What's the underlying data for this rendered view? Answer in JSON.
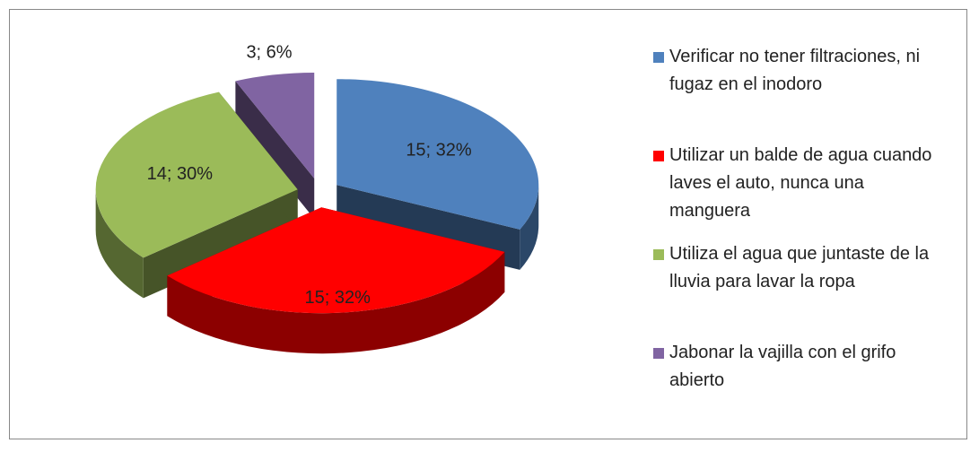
{
  "chart_data": {
    "type": "pie",
    "categories": [
      "Verificar no tener filtraciones, ni fugaz en el inodoro",
      "Utilizar un balde de agua cuando laves el auto, nunca una manguera",
      "Utiliza el agua que juntaste de la lluvia para lavar la ropa",
      "Jabonar la vajilla con el grifo abierto"
    ],
    "values": [
      15,
      15,
      14,
      3
    ],
    "value_labels": [
      "15; 32%",
      "15; 32%",
      "14; 30%",
      "3; 6%"
    ],
    "colors": [
      "#4f81bd",
      "#ff0000",
      "#9bbb59",
      "#8064a2"
    ],
    "legend": "right"
  }
}
